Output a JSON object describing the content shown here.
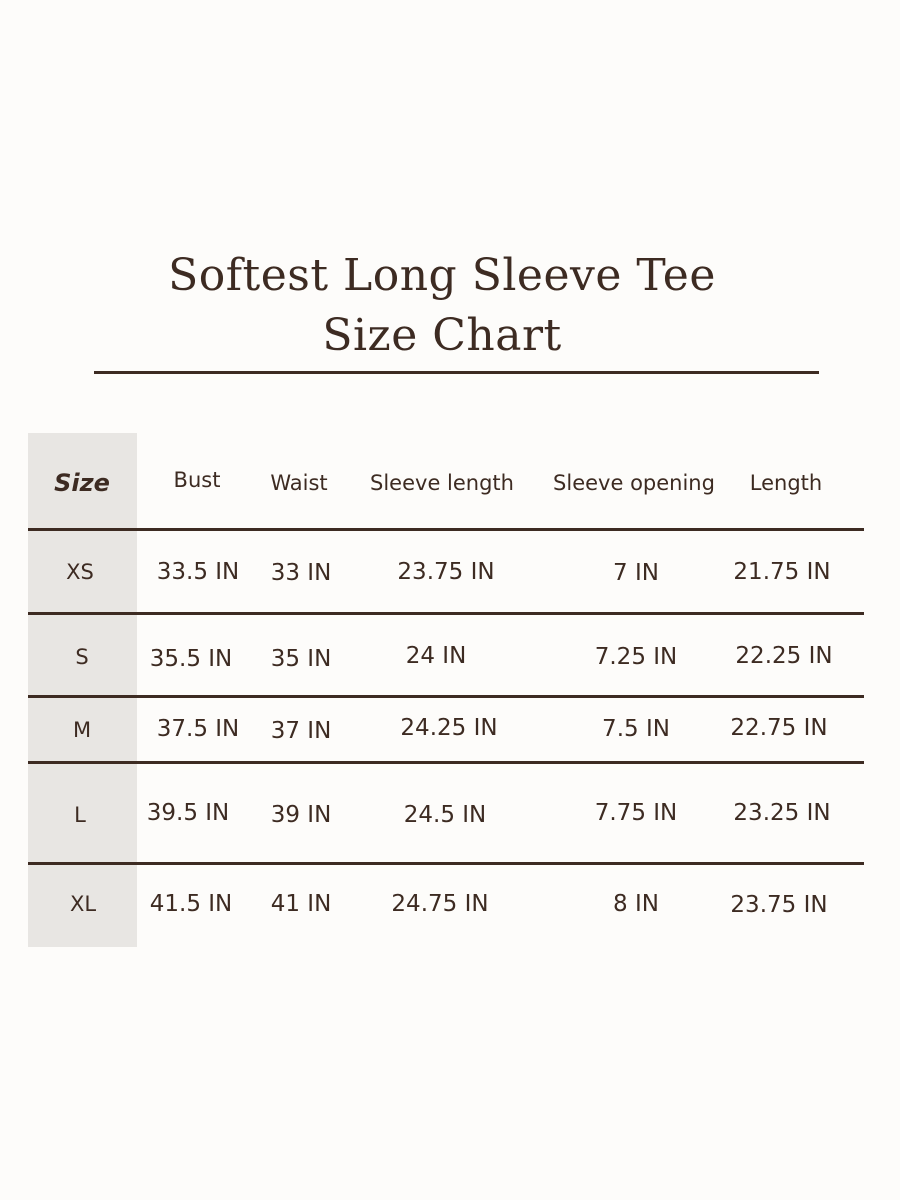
{
  "title_line1": "Softest Long Sleeve Tee",
  "title_line2": "Size Chart",
  "table": {
    "headers": [
      "Size",
      "Bust",
      "Waist",
      "Sleeve length",
      "Sleeve opening",
      "Length"
    ],
    "rows": [
      [
        "XS",
        "33.5 IN",
        "33 IN",
        "23.75 IN",
        "7 IN",
        "21.75 IN"
      ],
      [
        "S",
        "35.5 IN",
        "35 IN",
        "24 IN",
        "7.25 IN",
        "22.25 IN"
      ],
      [
        "M",
        "37.5 IN",
        "37 IN",
        "24.25 IN",
        "7.5 IN",
        "22.75 IN"
      ],
      [
        "L",
        "39.5 IN",
        "39 IN",
        "24.5 IN",
        "7.75 IN",
        "23.25 IN"
      ],
      [
        "XL",
        "41.5 IN",
        "41 IN",
        "24.75 IN",
        "8 IN",
        "23.75 IN"
      ]
    ]
  },
  "colors": {
    "text": "#3d2b22",
    "size_column_bg": "#e8e6e3",
    "background": "#fdfcfa"
  }
}
